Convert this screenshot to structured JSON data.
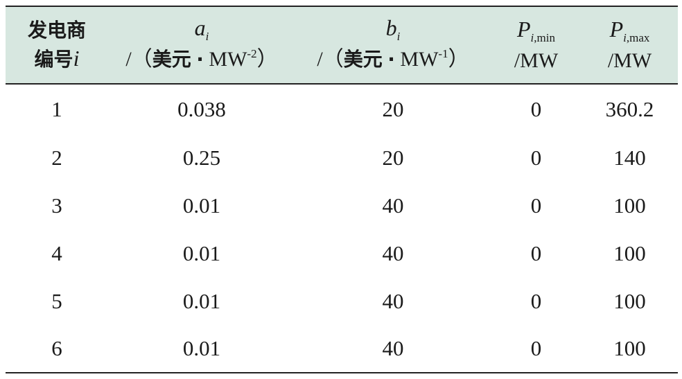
{
  "table": {
    "headers": [
      {
        "line1_cjk": "发电商",
        "line2_cjk": "编号",
        "line2_sym": "i"
      },
      {
        "symbol": "a",
        "subscript": "i",
        "unit_open": "/（",
        "unit_cjk": "美元",
        "unit_dot": "·",
        "unit_mw": "MW",
        "unit_exp": "-2",
        "unit_close": "）"
      },
      {
        "symbol": "b",
        "subscript": "i",
        "unit_open": "/（",
        "unit_cjk": "美元",
        "unit_dot": "·",
        "unit_mw": "MW",
        "unit_exp": "-1",
        "unit_close": "）"
      },
      {
        "symbol": "P",
        "subscript_italic": "i",
        "subscript_plain": ",min",
        "unit": "/MW"
      },
      {
        "symbol": "P",
        "subscript_italic": "i",
        "subscript_plain": ",max",
        "unit": "/MW"
      }
    ],
    "rows": [
      [
        "1",
        "0.038",
        "20",
        "0",
        "360.2"
      ],
      [
        "2",
        "0.25",
        "20",
        "0",
        "140"
      ],
      [
        "3",
        "0.01",
        "40",
        "0",
        "100"
      ],
      [
        "4",
        "0.01",
        "40",
        "0",
        "100"
      ],
      [
        "5",
        "0.01",
        "40",
        "0",
        "100"
      ],
      [
        "6",
        "0.01",
        "40",
        "0",
        "100"
      ]
    ]
  }
}
